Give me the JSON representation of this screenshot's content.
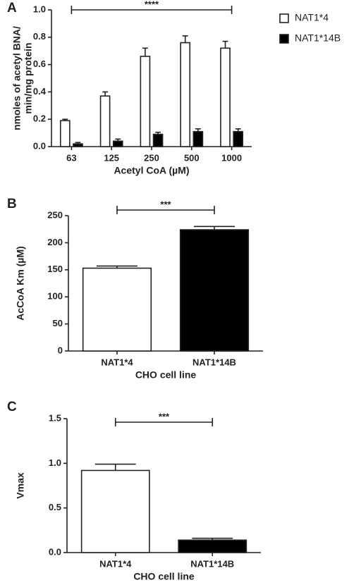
{
  "chart_data": [
    {
      "type": "bar",
      "panel_label": "A",
      "ylabel": [
        "nmoles of acetyl BNA/",
        "min/mg protein"
      ],
      "xlabel": "Acetyl CoA (µM)",
      "categories": [
        "63",
        "125",
        "250",
        "500",
        "1000"
      ],
      "series": [
        {
          "name": "NAT1*4",
          "color": "#ffffff",
          "values": [
            0.19,
            0.37,
            0.66,
            0.76,
            0.72
          ],
          "errors": [
            0.01,
            0.03,
            0.06,
            0.05,
            0.05
          ]
        },
        {
          "name": "NAT1*14B",
          "color": "#000000",
          "values": [
            0.02,
            0.04,
            0.09,
            0.11,
            0.11
          ],
          "errors": [
            0.01,
            0.015,
            0.015,
            0.02,
            0.02
          ]
        }
      ],
      "ylim": [
        0,
        1.0
      ],
      "yticks": [
        {
          "value": 0,
          "label": "0.0"
        },
        0.2,
        0.4,
        0.6,
        0.8,
        {
          "value": 1.0,
          "label": "1.0"
        }
      ],
      "annotation": "****",
      "legend": "right"
    },
    {
      "type": "bar",
      "panel_label": "B",
      "ylabel": [
        "AcCoA Km (µM)"
      ],
      "xlabel": "CHO cell line",
      "categories": [
        "NAT1*4",
        "NAT1*14B"
      ],
      "values": [
        153,
        224
      ],
      "errors": [
        4,
        6
      ],
      "colors": [
        "#ffffff",
        "#000000"
      ],
      "ylim": [
        0,
        250
      ],
      "yticks": [
        0,
        50,
        100,
        150,
        200,
        250
      ],
      "annotation": "***"
    },
    {
      "type": "bar",
      "panel_label": "C",
      "ylabel": [
        "Vmax"
      ],
      "xlabel": "CHO cell line",
      "categories": [
        "NAT1*4",
        "NAT1*14B"
      ],
      "values": [
        0.92,
        0.14
      ],
      "errors": [
        0.07,
        0.02
      ],
      "colors": [
        "#ffffff",
        "#000000"
      ],
      "ylim": [
        0,
        1.5
      ],
      "yticks": [
        {
          "value": 0,
          "label": "0.0"
        },
        0.5,
        {
          "value": 1.0,
          "label": "1.0"
        },
        1.5
      ],
      "annotation": "***"
    }
  ]
}
